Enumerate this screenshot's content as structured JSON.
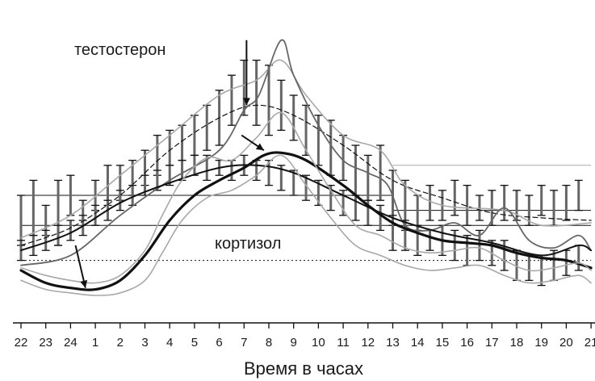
{
  "chart_data": {
    "type": "line",
    "xlabel": "Время в часах",
    "x_ticks": [
      "22",
      "23",
      "24",
      "1",
      "2",
      "3",
      "4",
      "5",
      "6",
      "7",
      "8",
      "9",
      "10",
      "11",
      "12",
      "13",
      "14",
      "15",
      "16",
      "17",
      "18",
      "19",
      "20",
      "21"
    ],
    "annotations": [
      {
        "id": "testosterone",
        "text": "тестостерон"
      },
      {
        "id": "cortisol",
        "text": "кортизол"
      }
    ],
    "grid": false,
    "colors": {
      "dark": "#111111",
      "mid": "#666666",
      "light": "#a8a8a8"
    },
    "series": [
      {
        "key": "testosterone_mean",
        "style": "dashed",
        "points": [
          [
            22,
            1.0
          ],
          [
            24,
            1.35
          ],
          [
            2,
            2.0
          ],
          [
            4,
            2.9
          ],
          [
            6,
            3.55
          ],
          [
            7.5,
            3.8
          ],
          [
            9,
            3.6
          ],
          [
            11,
            3.0
          ],
          [
            13,
            2.3
          ],
          [
            15,
            1.95
          ],
          [
            17,
            1.65
          ],
          [
            19,
            1.55
          ],
          [
            21,
            1.5
          ]
        ]
      },
      {
        "key": "testosterone_upper",
        "style": "solid-light",
        "points": [
          [
            22,
            1.15
          ],
          [
            24,
            1.6
          ],
          [
            2,
            2.4
          ],
          [
            4,
            3.2
          ],
          [
            6,
            4.0
          ],
          [
            7.5,
            4.3
          ],
          [
            8.5,
            4.7
          ],
          [
            9.5,
            4.0
          ],
          [
            11,
            3.2
          ],
          [
            12.5,
            2.9
          ],
          [
            13.5,
            2.2
          ],
          [
            15,
            1.8
          ],
          [
            17.5,
            1.7
          ],
          [
            19,
            1.4
          ],
          [
            21,
            1.45
          ]
        ]
      },
      {
        "key": "testosterone_individual",
        "style": "solid-mid",
        "points": [
          [
            22,
            0.6
          ],
          [
            24,
            0.8
          ],
          [
            2,
            1.6
          ],
          [
            4,
            2.3
          ],
          [
            6,
            2.9
          ],
          [
            7,
            3.7
          ],
          [
            7.6,
            4.0
          ],
          [
            8.5,
            5.1
          ],
          [
            9,
            4.4
          ],
          [
            10,
            3.4
          ],
          [
            11,
            2.7
          ],
          [
            12,
            2.45
          ],
          [
            12.8,
            2.2
          ],
          [
            13.5,
            1.4
          ],
          [
            14.5,
            1.3
          ],
          [
            15.5,
            1.45
          ],
          [
            16.5,
            1.2
          ],
          [
            17.5,
            1.75
          ],
          [
            18.5,
            1.1
          ],
          [
            19.5,
            0.95
          ],
          [
            20.5,
            1.2
          ],
          [
            21,
            0.9
          ]
        ]
      },
      {
        "key": "cortisol_mean",
        "style": "solid-bold",
        "points": [
          [
            22,
            0.5
          ],
          [
            23,
            0.25
          ],
          [
            24,
            0.15
          ],
          [
            1,
            0.12
          ],
          [
            2,
            0.3
          ],
          [
            3,
            0.8
          ],
          [
            4,
            1.5
          ],
          [
            5,
            2.0
          ],
          [
            6,
            2.3
          ],
          [
            7,
            2.55
          ],
          [
            7.8,
            2.8
          ],
          [
            8.5,
            2.85
          ],
          [
            9.5,
            2.7
          ],
          [
            11,
            2.2
          ],
          [
            12,
            1.8
          ],
          [
            13,
            1.45
          ],
          [
            14,
            1.25
          ],
          [
            15,
            1.1
          ],
          [
            16,
            1.05
          ],
          [
            17,
            1.0
          ],
          [
            18,
            0.85
          ],
          [
            19,
            0.75
          ],
          [
            20,
            0.7
          ],
          [
            21,
            0.55
          ]
        ]
      },
      {
        "key": "cortisol_smooth",
        "style": "solid-dark",
        "points": [
          [
            22,
            0.9
          ],
          [
            24,
            1.25
          ],
          [
            2,
            1.85
          ],
          [
            4,
            2.25
          ],
          [
            6,
            2.55
          ],
          [
            7.5,
            2.6
          ],
          [
            9,
            2.45
          ],
          [
            11,
            2.0
          ],
          [
            13,
            1.55
          ],
          [
            15,
            1.25
          ],
          [
            17,
            1.05
          ],
          [
            19,
            0.8
          ],
          [
            20.5,
            1.0
          ],
          [
            21,
            0.9
          ]
        ]
      },
      {
        "key": "cortisol_upper",
        "style": "solid-light",
        "points": [
          [
            22,
            0.55
          ],
          [
            23,
            0.4
          ],
          [
            24,
            0.3
          ],
          [
            1,
            0.25
          ],
          [
            2,
            0.4
          ],
          [
            3,
            0.9
          ],
          [
            3.7,
            1.6
          ],
          [
            4.5,
            2.3
          ],
          [
            5.5,
            2.75
          ],
          [
            6.5,
            2.7
          ],
          [
            7.5,
            3.15
          ],
          [
            8.5,
            3.65
          ],
          [
            9.5,
            2.9
          ],
          [
            10.5,
            2.1
          ],
          [
            11.5,
            1.4
          ],
          [
            12.5,
            1.2
          ],
          [
            13.5,
            0.95
          ],
          [
            14.5,
            0.85
          ],
          [
            15.5,
            0.9
          ],
          [
            16.5,
            0.95
          ],
          [
            17.5,
            0.7
          ],
          [
            18.5,
            0.5
          ],
          [
            19.5,
            0.55
          ],
          [
            20.5,
            0.65
          ],
          [
            21,
            0.5
          ]
        ]
      },
      {
        "key": "cortisol_lower",
        "style": "solid-light",
        "points": [
          [
            22,
            0.3
          ],
          [
            23,
            0.12
          ],
          [
            24,
            0.05
          ],
          [
            1,
            0.0
          ],
          [
            2,
            0.05
          ],
          [
            3,
            0.3
          ],
          [
            3.7,
            0.85
          ],
          [
            4.5,
            1.5
          ],
          [
            5.5,
            1.95
          ],
          [
            6.5,
            2.1
          ],
          [
            7.5,
            2.4
          ],
          [
            8.5,
            2.8
          ],
          [
            9.5,
            2.2
          ],
          [
            10.5,
            1.55
          ],
          [
            11.5,
            1.0
          ],
          [
            12.5,
            0.8
          ],
          [
            13.5,
            0.6
          ],
          [
            14.5,
            0.5
          ],
          [
            15.5,
            0.55
          ],
          [
            16.5,
            0.6
          ],
          [
            17.5,
            0.4
          ],
          [
            18.5,
            0.25
          ],
          [
            19.5,
            0.3
          ],
          [
            20.5,
            0.4
          ],
          [
            21,
            0.25
          ]
        ]
      }
    ],
    "error_bars": [
      [
        22,
        2.0,
        1.0
      ],
      [
        22.5,
        1.2,
        2.3
      ],
      [
        23,
        1.2,
        1.8
      ],
      [
        23.5,
        1.0,
        2.3
      ],
      [
        24,
        1.6,
        2.4
      ],
      [
        24.5,
        1.5,
        1.9
      ],
      [
        1,
        1.7,
        2.3
      ],
      [
        1.5,
        1.8,
        2.6
      ],
      [
        2,
        1.9,
        2.6
      ],
      [
        2.5,
        2.0,
        2.7
      ],
      [
        3,
        2.2,
        2.9
      ],
      [
        3.5,
        2.4,
        3.2
      ],
      [
        4,
        2.6,
        3.3
      ],
      [
        4.5,
        2.7,
        3.4
      ],
      [
        5,
        2.8,
        3.6
      ],
      [
        5.5,
        2.9,
        3.8
      ],
      [
        6,
        3.0,
        4.1
      ],
      [
        6.5,
        3.4,
        4.4
      ],
      [
        7,
        3.6,
        4.7
      ],
      [
        7.5,
        3.4,
        4.7
      ],
      [
        8,
        3.2,
        4.6
      ],
      [
        8.5,
        3.3,
        4.3
      ],
      [
        9,
        3.1,
        4.0
      ],
      [
        9.5,
        2.8,
        3.8
      ],
      [
        10,
        2.6,
        3.6
      ],
      [
        10.5,
        2.4,
        3.5
      ],
      [
        11,
        2.3,
        3.2
      ],
      [
        11.5,
        2.0,
        3.0
      ],
      [
        12,
        1.9,
        2.8
      ],
      [
        12.5,
        1.9,
        3.0
      ],
      [
        13,
        1.4,
        2.5
      ],
      [
        13.5,
        1.3,
        2.3
      ],
      [
        14,
        1.3,
        2.0
      ],
      [
        14.5,
        1.5,
        2.2
      ],
      [
        15,
        1.5,
        2.1
      ],
      [
        15.5,
        1.6,
        2.3
      ],
      [
        16,
        1.4,
        2.2
      ],
      [
        16.5,
        1.5,
        2.0
      ],
      [
        17,
        1.4,
        2.1
      ],
      [
        17.5,
        1.5,
        2.2
      ],
      [
        18,
        1.5,
        2.1
      ],
      [
        18.5,
        1.4,
        2.0
      ],
      [
        19,
        1.6,
        2.2
      ],
      [
        19.5,
        1.4,
        2.1
      ],
      [
        20,
        1.5,
        2.2
      ],
      [
        20.5,
        1.7,
        2.3
      ],
      [
        22,
        0.7,
        1.1
      ],
      [
        22.5,
        0.8,
        1.2
      ],
      [
        23,
        0.9,
        1.3
      ],
      [
        23.5,
        1.0,
        1.4
      ],
      [
        24,
        1.1,
        1.5
      ],
      [
        24.5,
        1.2,
        1.6
      ],
      [
        1,
        1.4,
        1.8
      ],
      [
        1.5,
        1.5,
        1.9
      ],
      [
        2,
        1.7,
        2.1
      ],
      [
        2.5,
        1.8,
        2.2
      ],
      [
        3,
        2.0,
        2.4
      ],
      [
        3.5,
        2.1,
        2.5
      ],
      [
        4,
        2.2,
        2.6
      ],
      [
        4.5,
        2.3,
        2.7
      ],
      [
        5,
        2.4,
        2.8
      ],
      [
        5.5,
        2.3,
        2.8
      ],
      [
        6,
        2.4,
        2.7
      ],
      [
        6.5,
        2.3,
        2.7
      ],
      [
        7,
        2.4,
        2.8
      ],
      [
        7.5,
        2.3,
        2.7
      ],
      [
        8,
        2.2,
        2.7
      ],
      [
        8.5,
        2.1,
        2.6
      ],
      [
        9,
        2.0,
        2.5
      ],
      [
        9.5,
        1.9,
        2.4
      ],
      [
        10,
        1.8,
        2.3
      ],
      [
        10.5,
        1.7,
        2.2
      ],
      [
        11,
        1.6,
        2.1
      ],
      [
        11.5,
        1.5,
        2.0
      ],
      [
        12,
        1.4,
        1.9
      ],
      [
        12.5,
        1.3,
        1.8
      ],
      [
        13,
        0.9,
        1.6
      ],
      [
        13.5,
        0.9,
        1.5
      ],
      [
        14,
        0.8,
        1.4
      ],
      [
        14.5,
        0.9,
        1.3
      ],
      [
        15,
        0.8,
        1.4
      ],
      [
        15.5,
        0.7,
        1.3
      ],
      [
        16,
        0.6,
        1.2
      ],
      [
        16.5,
        0.7,
        1.3
      ],
      [
        17,
        0.6,
        1.1
      ],
      [
        17.5,
        0.5,
        1.1
      ],
      [
        18,
        0.3,
        0.9
      ],
      [
        18.5,
        0.3,
        0.8
      ],
      [
        19,
        0.2,
        0.8
      ],
      [
        19.5,
        0.3,
        0.9
      ],
      [
        20,
        0.4,
        0.9
      ],
      [
        20.5,
        0.5,
        1.0
      ]
    ],
    "reference_lines": [
      {
        "style": "solid",
        "y": 2.0,
        "x_range": [
          22,
          13
        ]
      },
      {
        "style": "solid",
        "y": 1.4,
        "x_range": [
          22,
          21
        ]
      },
      {
        "style": "solid",
        "y": 1.7,
        "x_range": [
          13,
          21
        ]
      },
      {
        "style": "dotted",
        "y": 0.7,
        "x_range": [
          22,
          21
        ]
      },
      {
        "style": "solid-light",
        "y": 2.6,
        "x_range": [
          13,
          21
        ]
      }
    ],
    "arrows": [
      {
        "from": [
          7.1,
          5.1
        ],
        "to": [
          7.1,
          3.8
        ]
      },
      {
        "from": [
          6.9,
          3.2
        ],
        "to": [
          7.8,
          2.9
        ]
      },
      {
        "from": [
          24.2,
          1.0
        ],
        "to": [
          24.6,
          0.15
        ]
      }
    ]
  }
}
